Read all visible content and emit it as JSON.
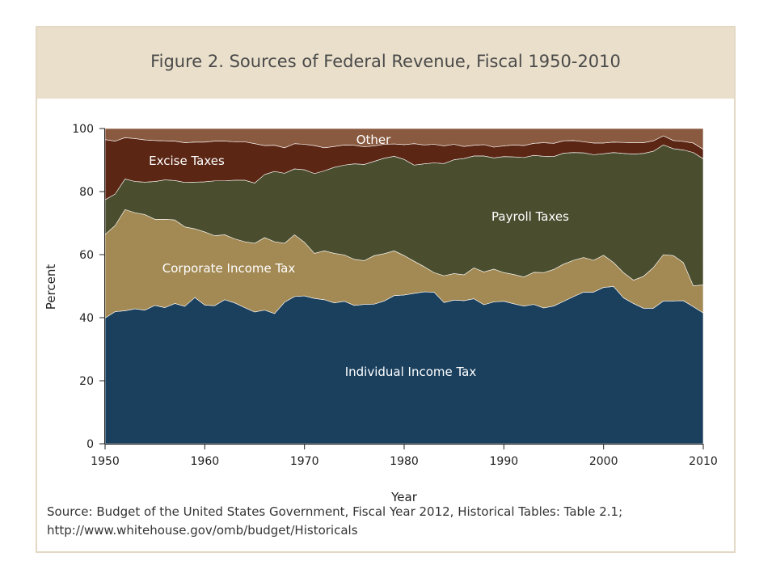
{
  "figure": {
    "title": "Figure 2. Sources of Federal Revenue, Fiscal 1950-2010",
    "source_line1": "Source: Budget of the United States Government, Fiscal Year 2012, Historical Tables: Table 2.1;",
    "source_line2": "http://www.whitehouse.gov/omb/budget/Historicals"
  },
  "chart_data": {
    "type": "area",
    "stacked": true,
    "title": "Figure 2. Sources of Federal Revenue, Fiscal 1950-2010",
    "xlabel": "Year",
    "ylabel": "Percent",
    "xlim": [
      1950,
      2010
    ],
    "ylim": [
      0,
      100
    ],
    "x_ticks": [
      1950,
      1960,
      1970,
      1980,
      1990,
      2000,
      2010
    ],
    "y_ticks": [
      0,
      20,
      40,
      60,
      80,
      100
    ],
    "grid": false,
    "legend": "none (direct labels)",
    "x": [
      1950,
      1951,
      1952,
      1953,
      1954,
      1955,
      1956,
      1957,
      1958,
      1959,
      1960,
      1961,
      1962,
      1963,
      1964,
      1965,
      1966,
      1967,
      1968,
      1969,
      1970,
      1971,
      1972,
      1973,
      1974,
      1975,
      1976,
      1977,
      1978,
      1979,
      1980,
      1981,
      1982,
      1983,
      1984,
      1985,
      1986,
      1987,
      1988,
      1989,
      1990,
      1991,
      1992,
      1993,
      1994,
      1995,
      1996,
      1997,
      1998,
      1999,
      2000,
      2001,
      2002,
      2003,
      2004,
      2005,
      2006,
      2007,
      2008,
      2009,
      2010
    ],
    "series": [
      {
        "name": "Individual Income Tax",
        "color": "#1b405e",
        "values": [
          39.9,
          41.9,
          42.2,
          42.8,
          42.4,
          43.9,
          43.2,
          44.5,
          43.6,
          46.4,
          44.0,
          43.8,
          45.7,
          44.7,
          43.2,
          41.8,
          42.4,
          41.3,
          44.9,
          46.7,
          46.9,
          46.1,
          45.7,
          44.7,
          45.2,
          43.9,
          44.2,
          44.3,
          45.3,
          47.0,
          47.2,
          47.7,
          48.2,
          48.1,
          44.8,
          45.6,
          45.4,
          46.0,
          44.1,
          45.0,
          45.2,
          44.4,
          43.7,
          44.2,
          43.1,
          43.7,
          45.2,
          46.7,
          48.1,
          48.1,
          49.6,
          49.9,
          46.3,
          44.5,
          43.0,
          43.0,
          45.3,
          45.3,
          45.4,
          43.5,
          41.5
        ]
      },
      {
        "name": "Corporate Income Tax",
        "color": "#a38953",
        "values": [
          26.5,
          27.3,
          32.1,
          30.5,
          30.3,
          27.3,
          28.0,
          26.5,
          25.2,
          21.8,
          23.2,
          22.2,
          20.6,
          20.3,
          20.9,
          21.8,
          23.0,
          22.8,
          18.7,
          19.6,
          17.0,
          14.3,
          15.5,
          15.7,
          14.7,
          14.6,
          13.9,
          15.4,
          15.0,
          14.2,
          12.5,
          10.2,
          8.0,
          6.2,
          8.5,
          8.4,
          8.2,
          9.8,
          10.4,
          10.4,
          9.1,
          9.3,
          9.2,
          10.2,
          11.2,
          11.6,
          11.8,
          11.5,
          11.0,
          10.1,
          10.2,
          7.6,
          8.0,
          7.4,
          10.1,
          12.9,
          14.7,
          14.4,
          12.1,
          6.6,
          8.9
        ]
      },
      {
        "name": "Payroll Taxes",
        "color": "#4a4e2e",
        "values": [
          11.0,
          10.0,
          9.7,
          9.9,
          10.3,
          12.0,
          12.5,
          12.5,
          14.1,
          14.8,
          15.9,
          17.4,
          17.1,
          18.6,
          19.5,
          19.1,
          20.0,
          22.3,
          22.2,
          20.9,
          23.0,
          25.3,
          25.4,
          27.3,
          28.5,
          30.3,
          30.5,
          29.9,
          30.3,
          30.0,
          30.5,
          30.5,
          32.6,
          34.8,
          35.6,
          36.1,
          36.9,
          35.5,
          36.8,
          35.3,
          36.8,
          37.3,
          37.9,
          37.1,
          36.9,
          35.8,
          35.2,
          34.2,
          33.2,
          33.5,
          32.2,
          34.9,
          37.8,
          40.0,
          39.0,
          36.9,
          34.8,
          33.9,
          35.7,
          42.3,
          40.0
        ]
      },
      {
        "name": "Excise Taxes",
        "color": "#5b2614",
        "values": [
          19.1,
          16.8,
          13.1,
          13.6,
          13.4,
          13.0,
          12.4,
          12.5,
          12.6,
          12.7,
          12.6,
          12.6,
          12.6,
          12.2,
          12.2,
          12.5,
          9.2,
          8.3,
          8.1,
          8.0,
          8.1,
          8.9,
          7.3,
          6.6,
          6.4,
          5.9,
          5.6,
          4.9,
          4.4,
          3.9,
          4.7,
          6.8,
          6.0,
          5.9,
          5.6,
          4.9,
          3.8,
          3.4,
          3.6,
          3.4,
          3.4,
          3.8,
          3.8,
          3.8,
          4.3,
          4.2,
          3.9,
          3.8,
          3.5,
          3.7,
          3.4,
          3.3,
          3.5,
          3.6,
          3.4,
          3.3,
          2.9,
          2.6,
          2.7,
          3.0,
          3.0
        ]
      },
      {
        "name": "Other",
        "color": "#8a5a40",
        "values": [
          3.5,
          4.0,
          2.9,
          3.2,
          3.6,
          3.8,
          3.9,
          4.0,
          4.5,
          4.3,
          4.3,
          4.0,
          4.0,
          4.2,
          4.2,
          4.8,
          5.4,
          5.3,
          6.1,
          4.8,
          5.0,
          5.4,
          6.1,
          5.7,
          5.2,
          5.3,
          5.8,
          5.5,
          5.0,
          4.9,
          5.1,
          4.8,
          5.2,
          5.0,
          5.5,
          5.0,
          5.7,
          5.3,
          5.1,
          5.9,
          5.5,
          5.2,
          5.4,
          4.7,
          4.5,
          4.7,
          3.9,
          3.8,
          4.2,
          4.6,
          4.6,
          4.3,
          4.4,
          4.5,
          4.5,
          3.9,
          2.3,
          3.8,
          4.1,
          4.6,
          6.6
        ]
      }
    ]
  }
}
